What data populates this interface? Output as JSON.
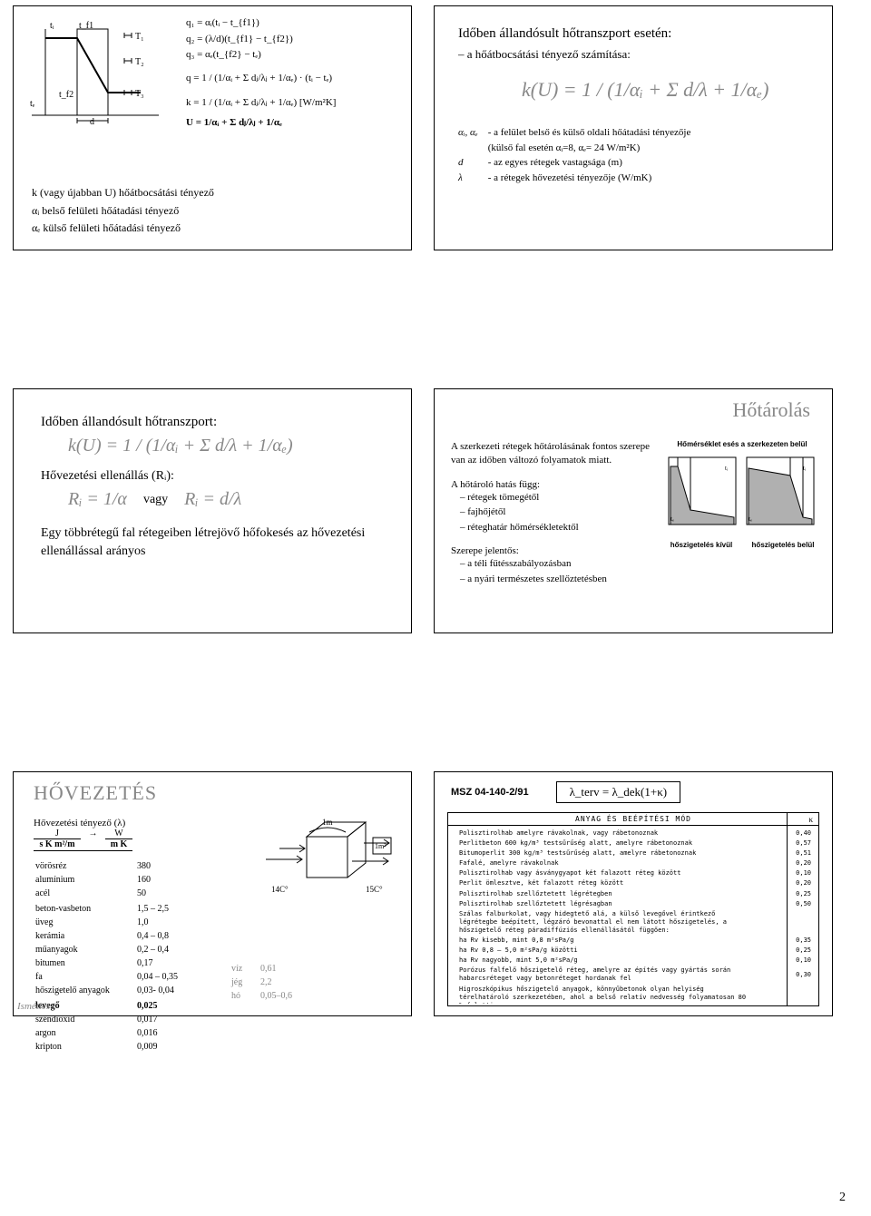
{
  "slide1": {
    "eq1": "q₁ = αᵢ(tᵢ − t_{f1})",
    "eq2": "q₂ = (λ/d)(t_{f1} − t_{f2})",
    "eq3": "q₃ = αₑ(t_{f2} − tₑ)",
    "eq_q": "q = 1 / (1/αᵢ + Σ dⱼ/λⱼ + 1/αₑ) · (tᵢ − tₑ)",
    "eq_k": "k = 1 / (1/αᵢ + Σ dⱼ/λⱼ + 1/αₑ)   [W/m²K]",
    "eq_U": "U = 1/αᵢ + Σ dⱼ/λⱼ + 1/αₑ",
    "def_k": "k (vagy újabban U) hőátbocsátási tényező",
    "def_ai": "αᵢ belső felületi hőátadási tényező",
    "def_ae": "αₑ külső felületi hőátadási tényező",
    "diagram_labels": {
      "ti": "tᵢ",
      "tf1": "t_{f1}",
      "tf2": "t_{f2}",
      "te": "tₑ",
      "d": "d",
      "T1": "T₁",
      "T2": "T₂",
      "T3": "T₃"
    }
  },
  "slide2": {
    "title": "Időben állandósult hőtranszport esetén:",
    "sub": "– a hőátbocsátási tényező számítása:",
    "formula": "k(U) = 1 / (1/αᵢ + Σ d/λ + 1/αₑ)",
    "def1_sym": "αᵢ, αₑ",
    "def1": "- a felület belső és külső oldali hőátadási tényezője",
    "def1b": "(külső fal esetén αᵢ=8, αₑ= 24 W/m²K)",
    "def2_sym": "d",
    "def2": "- az egyes rétegek vastagsága (m)",
    "def3_sym": "λ",
    "def3": "- a rétegek hővezetési tényezője (W/mK)"
  },
  "slide3": {
    "title": "Időben állandósult hőtranszport:",
    "formula_k": "k(U) = 1 / (1/αᵢ + Σ d/λ + 1/αₑ)",
    "r_label": "Hővezetési ellenállás (Rᵢ):",
    "r_formula": "Rᵢ = 1/α   vagy   Rᵢ = d/λ",
    "vagy": "vagy",
    "desc": "Egy többrétegű fal rétegeiben létrejövő hőfokesés az hővezetési ellenállással arányos"
  },
  "slide4": {
    "title": "Hőtárolás",
    "p1": "A szerkezeti rétegek hőtárolásának fontos szerepe van az időben változó folyamatok miatt.",
    "p2_head": "A hőtároló hatás függ:",
    "p2_items": [
      "rétegek tömegétől",
      "fajhőjétől",
      "réteghatár hőmérsékletektől"
    ],
    "p3_head": "Szerepe jelentős:",
    "p3_items": [
      "a téli fűtésszabályozásban",
      "a nyári természetes szellőztetésben"
    ],
    "chart_title": "Hőmérséklet esés a szerkezeten belül",
    "chart_l": "hőszigetelés kívül",
    "chart_r": "hőszigetelés belül"
  },
  "slide5": {
    "title": "HŐVEZETÉS",
    "lambda_label": "Hővezetési tényező (λ)",
    "unit_left": "J",
    "unit_left2": "s K m²/m",
    "unit_arrow": "→",
    "unit_right": "W",
    "unit_right2": "m K",
    "materials": [
      [
        "vörösréz",
        "380"
      ],
      [
        "alumínium",
        "160"
      ],
      [
        "acél",
        "50"
      ],
      [
        "",
        ""
      ],
      [
        "beton-vasbeton",
        "1,5 – 2,5"
      ],
      [
        "üveg",
        "1,0"
      ],
      [
        "kerámia",
        "0,4 – 0,8"
      ],
      [
        "műanyagok",
        "0,2 – 0,4"
      ],
      [
        "bitumen",
        "0,17"
      ],
      [
        "fa",
        "0,04 – 0,35"
      ],
      [
        "hőszigetelő anyagok",
        "0,03- 0,04"
      ],
      [
        "",
        ""
      ],
      [
        "levegő",
        "0,025"
      ],
      [
        "széndioxid",
        "0,017"
      ],
      [
        "argon",
        "0,016"
      ],
      [
        "kripton",
        "0,009"
      ]
    ],
    "extra": [
      [
        "víz",
        "0,61"
      ],
      [
        "jég",
        "2,2"
      ],
      [
        "hó",
        "0,05–0,6"
      ]
    ],
    "footer": "Ismétlés",
    "fig_labels": {
      "lm": "1m",
      "lm2": "1m²",
      "t14": "14C°",
      "t15": "15C°"
    }
  },
  "slide6": {
    "header_l": "MSZ 04-140-2/91",
    "header_r": "λ_terv = λ_dek(1+κ)",
    "scan_title": "ANYAG ÉS BEÉPÍTÉSI MÓD",
    "kappa_head": "κ",
    "rows": [
      [
        "Polisztirolhab amelyre rávakolnak, vagy rábetonoznak",
        "0,40"
      ],
      [
        "Perlitbeton 600 kg/m³ testsűrűség alatt, amelyre rábetonoznak",
        "0,57"
      ],
      [
        "Bitumoperlit 300 kg/m³ testsűrűség alatt, amelyre rábetonoznak",
        "0,51"
      ],
      [
        "Fafalé, amelyre rávakolnak",
        "0,20"
      ],
      [
        "Polisztirolhab vagy ásványgyapot két falazott réteg között",
        "0,10"
      ],
      [
        "Perlit ömlesztve, két falazott réteg között",
        "0,20"
      ],
      [
        "Polisztirolhab szellőztetett légrétegben",
        "0,25"
      ],
      [
        "Polisztirolhab szellőztetett légrésagban",
        "0,50"
      ],
      [
        "Szálas falburkolat, vagy hidegtető alá, a külső levegővel érintkező légrétegbe beépített, légzáró bevonattal el nem látott hőszigetelés, a hőszigetelő réteg páradiffúziós ellenállásától függően:",
        ""
      ],
      [
        "    ha Rv kisebb, mint 0,8 m²sPa/g",
        "0,35"
      ],
      [
        "    ha Rv 0,8 – 5,0 m²sPa/g közötti",
        "0,25"
      ],
      [
        "    ha Rv nagyobb, mint 5,0 m²sPa/g",
        "0,10"
      ],
      [
        "Porózus falfelő hőszigetelő réteg, amelyre az építés vagy gyártás során habarcsréteget vagy betonréteget hordanak fel",
        "0,30"
      ],
      [
        "Higroszkópikus hőszigetelő anyagok, könnyűbetonok olyan helyiség térelhatároló szerkezetében, ahol a belső relatív nedvesség folyamatosan 80 % feletti:",
        ""
      ],
      [
        "    ha a helyiség levegőjével közvetlenül érintkezik:",
        "0,25"
      ],
      [
        "    ha attól párafékező, vagy burkorló réteg választja el:",
        "0,18"
      ],
      [
        "400 kg/m³-nél kisebb sűrűségű, ütépedésre, vetemedésre, roskadásra hajlamos hőszigetelés függőleges rétegként beépítve:",
        ""
      ],
      [
        "    ásványgyapot, polisztirolhab",
        "0,20"
      ],
      [
        "    táblák formájában előregyártva",
        "0,15"
      ],
      [
        "Lapostetőkbe beépített hőszigetelő táblák egy rétegben, tompa ütközéssel fektetve:",
        ""
      ],
      [
        "    kasírozás nélkül",
        "0,25"
      ],
      [
        "    legalább egy oldalról kasírozva",
        "0,10"
      ]
    ]
  },
  "page_number": "2",
  "colors": {
    "text": "#000000",
    "gray_formula": "#888888",
    "bg": "#ffffff",
    "fill_gray": "#b0b0b0"
  }
}
